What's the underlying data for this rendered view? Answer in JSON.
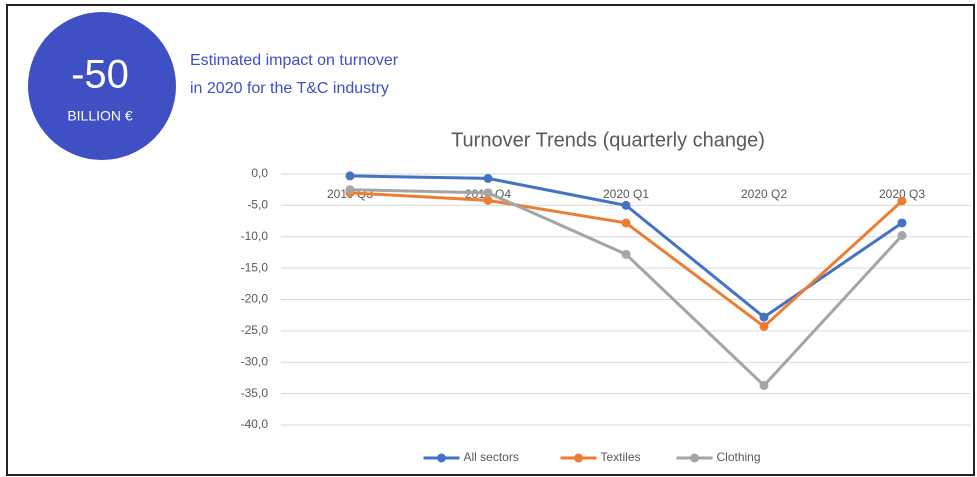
{
  "badge": {
    "value": "-50",
    "unit": "BILLION €"
  },
  "note": [
    "Estimated impact on turnover",
    "in 2020 for the T&C industry"
  ],
  "chart_data": {
    "type": "line",
    "title": "Turnover Trends (quarterly change)",
    "categories": [
      "2019 Q3",
      "2019 Q4",
      "2020 Q1",
      "2020 Q2",
      "2020 Q3"
    ],
    "series": [
      {
        "name": "All sectors",
        "color": "#4472c4",
        "values": [
          -0.3,
          -0.7,
          -5.0,
          -22.8,
          -7.8
        ]
      },
      {
        "name": "Textiles",
        "color": "#ed7d31",
        "values": [
          -3.0,
          -4.2,
          -7.8,
          -24.3,
          -4.3
        ]
      },
      {
        "name": "Clothing",
        "color": "#a5a5a5",
        "values": [
          -2.5,
          -3.0,
          -12.8,
          -33.7,
          -9.8
        ]
      }
    ],
    "ylim": [
      -40,
      0
    ],
    "yticks": [
      {
        "value": 0,
        "label": "0,0"
      },
      {
        "value": -5,
        "label": "-5,0"
      },
      {
        "value": -10,
        "label": "-10,0"
      },
      {
        "value": -15,
        "label": "-15,0"
      },
      {
        "value": -20,
        "label": "-20,0"
      },
      {
        "value": -25,
        "label": "-25,0"
      },
      {
        "value": -30,
        "label": "-30,0"
      },
      {
        "value": -35,
        "label": "-35,0"
      },
      {
        "value": -40,
        "label": "-40,0"
      }
    ],
    "grid": true,
    "legend": "bottom"
  }
}
